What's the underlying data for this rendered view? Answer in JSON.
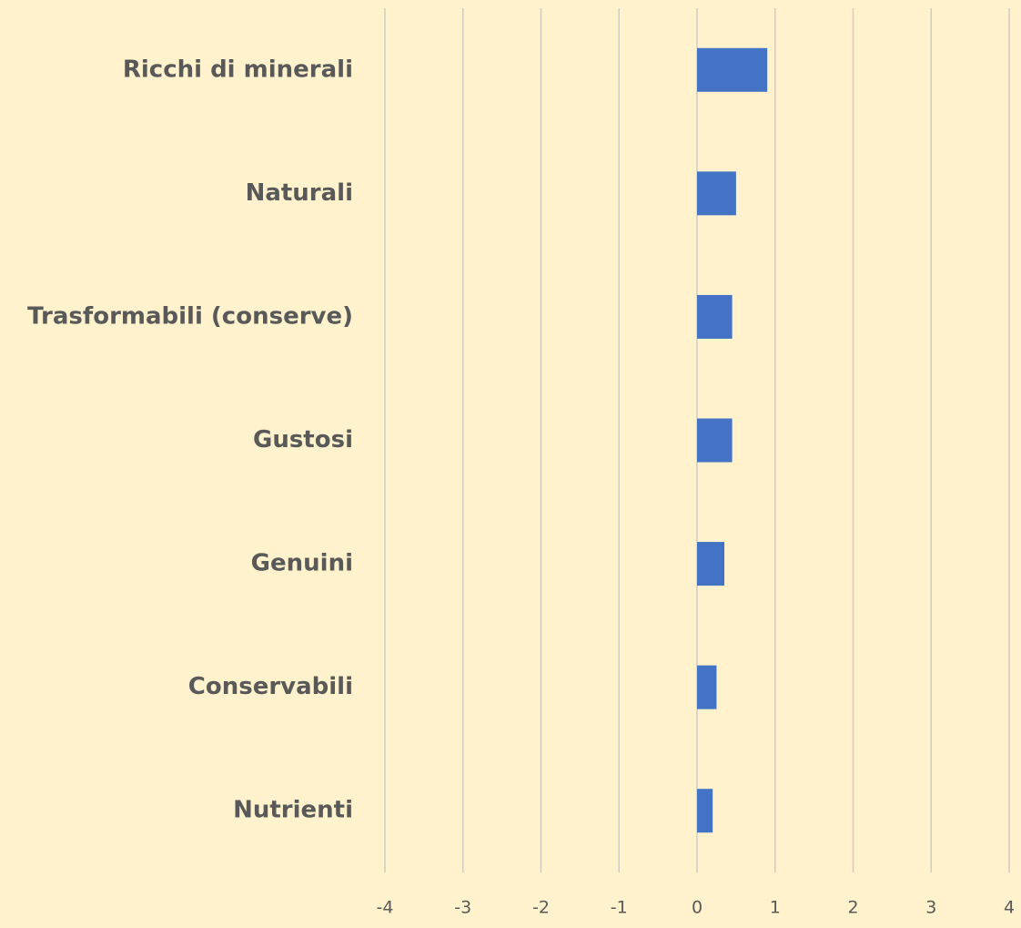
{
  "chart_data": {
    "type": "barh",
    "categories": [
      "Ricchi di minerali",
      "Naturali",
      "Trasformabili (conserve)",
      "Gustosi",
      "Genuini",
      "Conservabili",
      "Nutrienti"
    ],
    "values": [
      0.9,
      0.5,
      0.45,
      0.45,
      0.35,
      0.25,
      0.2
    ],
    "color": "#4472c4",
    "xlim": [
      -4,
      4
    ],
    "xticks": [
      -4,
      -3,
      -2,
      -1,
      0,
      1,
      2,
      3,
      4
    ],
    "grid": true
  }
}
